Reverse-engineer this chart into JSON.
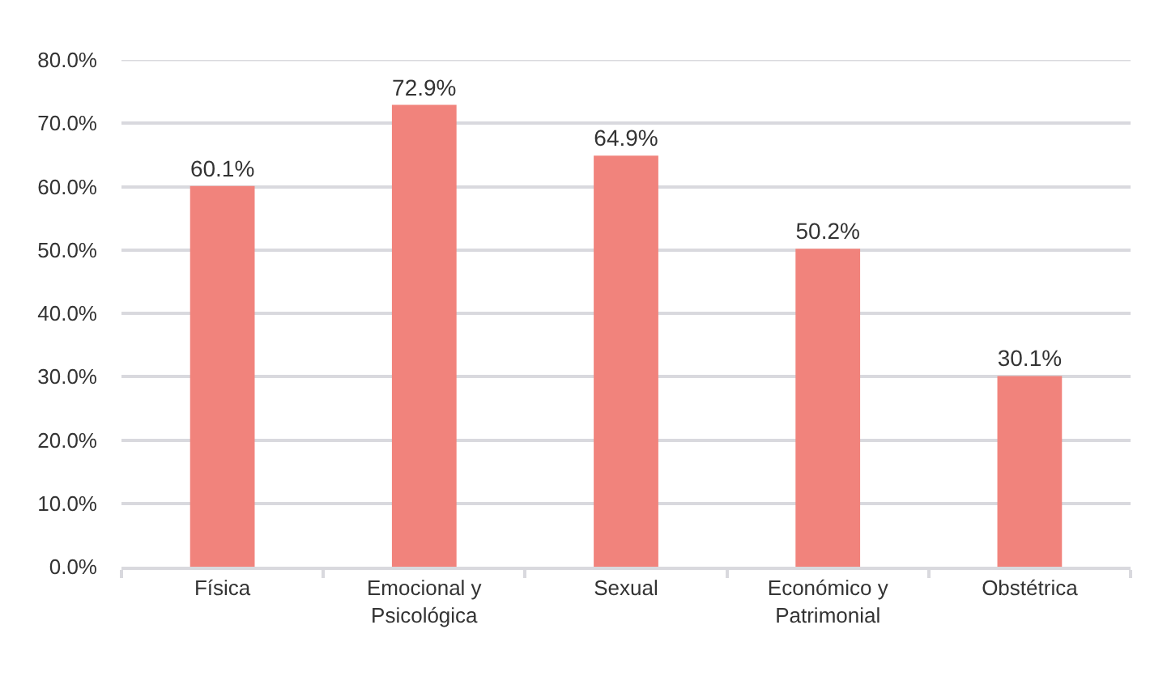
{
  "chart_data": {
    "type": "bar",
    "categories": [
      "Física",
      "Emocional y Psicológica",
      "Sexual",
      "Económico y Patrimonial",
      "Obstétrica"
    ],
    "values": [
      60.1,
      72.9,
      64.9,
      50.2,
      30.1
    ],
    "color": "#f1837c",
    "value_labels": [
      "60.1%",
      "72.9%",
      "64.9%",
      "50.2%",
      "30.1%"
    ],
    "ylim": [
      0,
      80
    ],
    "yticks": [
      {
        "value": 0,
        "label": "0.0%"
      },
      {
        "value": 10,
        "label": "10.0%"
      },
      {
        "value": 20,
        "label": "20.0%"
      },
      {
        "value": 30,
        "label": "30.0%"
      },
      {
        "value": 40,
        "label": "40.0%"
      },
      {
        "value": 50,
        "label": "50.0%"
      },
      {
        "value": 60,
        "label": "60.0%"
      },
      {
        "value": 70,
        "label": "70.0%"
      },
      {
        "value": 80,
        "label": "80.0%"
      }
    ],
    "grid": "y"
  }
}
